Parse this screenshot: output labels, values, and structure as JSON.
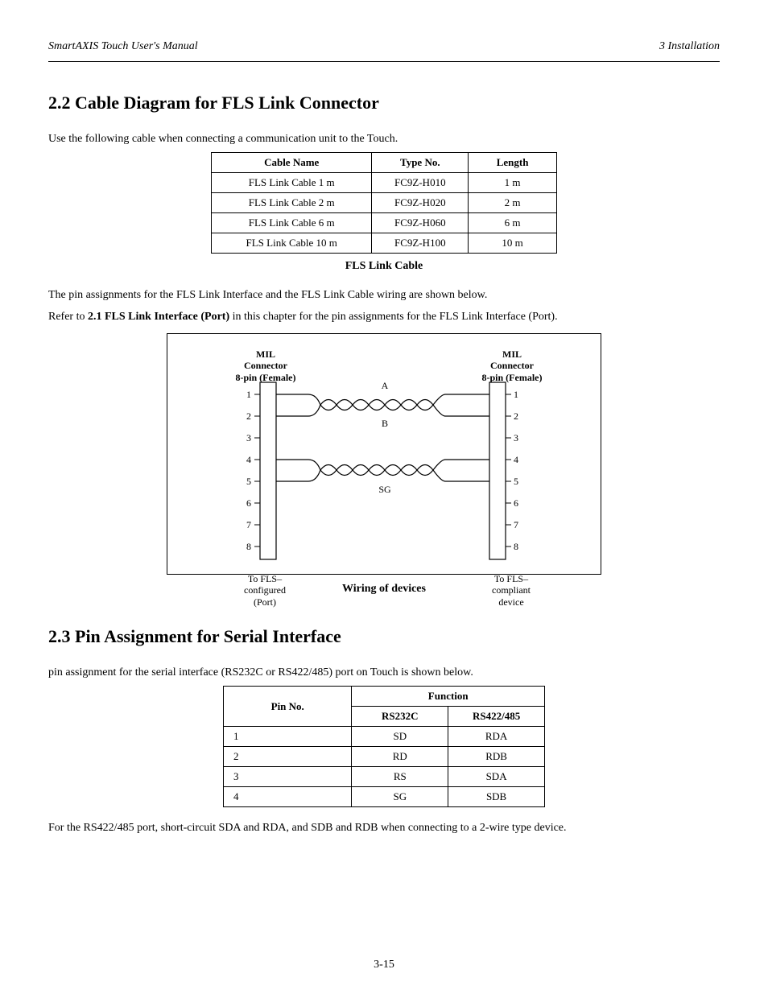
{
  "header": {
    "left": "SmartAXIS Touch User's Manual",
    "right": "3  Installation"
  },
  "section1": {
    "number_title": "2.2 Cable Diagram for FLS Link Connector",
    "intro": "Use the following cable when connecting a communication unit to the Touch.",
    "table": {
      "columns": [
        "Cable Name",
        "Type No.",
        "Length"
      ],
      "rows": [
        [
          "FLS Link Cable 1 m",
          "FC9Z-H010",
          "1 m"
        ],
        [
          "FLS Link Cable 2 m",
          "FC9Z-H020",
          "2 m"
        ],
        [
          "FLS Link Cable 6 m",
          "FC9Z-H060",
          "6 m"
        ],
        [
          "FLS Link Cable 10 m",
          "FC9Z-H100",
          "10 m"
        ]
      ]
    },
    "caption": "FLS Link Cable",
    "after_text_1": "The pin assignments for the FLS Link Interface and the FLS Link Cable wiring are shown below.",
    "after_text_2": "Refer to ",
    "after_text_link": "2.1 FLS Link Interface (Port)",
    "after_text_3": " in this chapter for the pin assignments for the FLS Link Interface (Port)."
  },
  "figure": {
    "conn1_top": "MIL Connector\n8-pin (Female)",
    "conn2_top": "MIL Connector\n8-pin (Female)",
    "conn1_bot": "To FLS–\nconfigured\n(Port)",
    "conn2_bot": "To FLS–\ncompliant\ndevice",
    "left_pins": [
      "1",
      "2",
      "3",
      "4",
      "5",
      "6",
      "7",
      "8"
    ],
    "right_pins": [
      "1",
      "2",
      "3",
      "4",
      "5",
      "6",
      "7",
      "8"
    ],
    "sig_a": "A",
    "sig_b": "B",
    "sig_sg": "SG",
    "caption": "Wiring of devices"
  },
  "section2": {
    "number_title": "2.3 Pin Assignment for Serial Interface",
    "intro": "pin assignment for the serial interface (RS232C or RS422/485) port on Touch is shown below.",
    "table": {
      "header1": "Pin No.",
      "header2": "Function",
      "subheaders": [
        "RS232C",
        "RS422/485"
      ],
      "rows": [
        [
          "1",
          "SD",
          "RDA"
        ],
        [
          "2",
          "RD",
          "RDB"
        ],
        [
          "3",
          "RS",
          "SDA"
        ],
        [
          "4",
          "SG",
          "SDB"
        ]
      ]
    },
    "note": "For the RS422/485 port, short-circuit SDA and RDA, and SDB and RDB when connecting to a 2-wire type device."
  },
  "page_number": "3-15"
}
